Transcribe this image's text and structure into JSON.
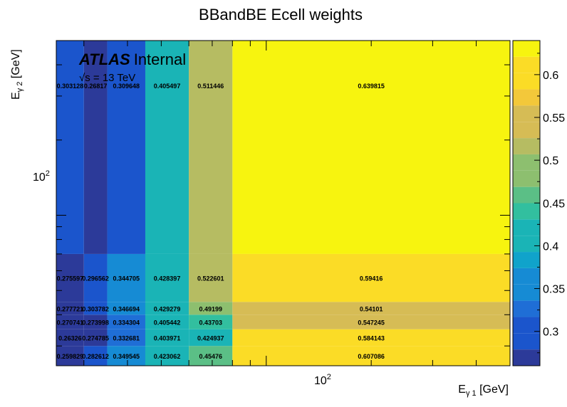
{
  "chart_data": {
    "type": "heatmap",
    "title": "BBandBE Ecell weights",
    "xlabel": {
      "base": "E",
      "sub": "γ 1",
      "unit": " [GeV]"
    },
    "ylabel": {
      "base": "E",
      "sub": "γ 2",
      "unit": " [GeV]"
    },
    "x_scale": "log",
    "y_scale": "log",
    "xlim": [
      25,
      500
    ],
    "ylim": [
      25,
      500
    ],
    "x_edges": [
      25,
      30,
      35,
      45,
      60,
      80,
      500
    ],
    "y_edges": [
      25,
      30,
      35,
      40,
      45,
      70,
      500
    ],
    "x_tick_label": {
      "value": 100,
      "base": "10",
      "exp": "2"
    },
    "y_tick_label": {
      "value": 100,
      "base": "10",
      "exp": "2"
    },
    "row_labels_bottom_to_top": [
      [
        "0.259829",
        "0.282612",
        "0.349545",
        "0.423062",
        "0.45476",
        "0.607086"
      ],
      [
        "0.26326",
        "0.274785",
        "0.332681",
        "0.403971",
        "0.424937",
        "0.584143"
      ],
      [
        "0.270741",
        "0.273998",
        "0.334304",
        "0.405442",
        "0.43703",
        "0.547245"
      ],
      [
        "0.277721",
        "0.303782",
        "0.346694",
        "0.429279",
        "0.49199",
        "0.54101"
      ],
      [
        "0.275597",
        "0.296562",
        "0.344705",
        "0.428397",
        "0.522601",
        "0.59416"
      ],
      [
        "0.303128",
        "0.26817",
        "0.309648",
        "0.405497",
        "0.511446",
        "0.639815"
      ]
    ],
    "zlim": [
      0.259829,
      0.639815
    ],
    "colorbar_ticks": [
      "0.3",
      "0.35",
      "0.4",
      "0.45",
      "0.5",
      "0.55",
      "0.6"
    ],
    "colorbar_tick_values": [
      0.3,
      0.35,
      0.4,
      0.45,
      0.5,
      0.55,
      0.6
    ],
    "palette": [
      "#2c3a99",
      "#1b55cc",
      "#1f6ed6",
      "#168bd4",
      "#10a3cb",
      "#1ab4b6",
      "#32bf9f",
      "#5bbf86",
      "#8dbf6f",
      "#b6bc62",
      "#d6bc55",
      "#f3c83a",
      "#fbdc26",
      "#f7f40f"
    ],
    "palette_levels": 20
  },
  "annotation": {
    "brand": "ATLAS",
    "status": "Internal",
    "energy": "√s = 13 TeV"
  }
}
